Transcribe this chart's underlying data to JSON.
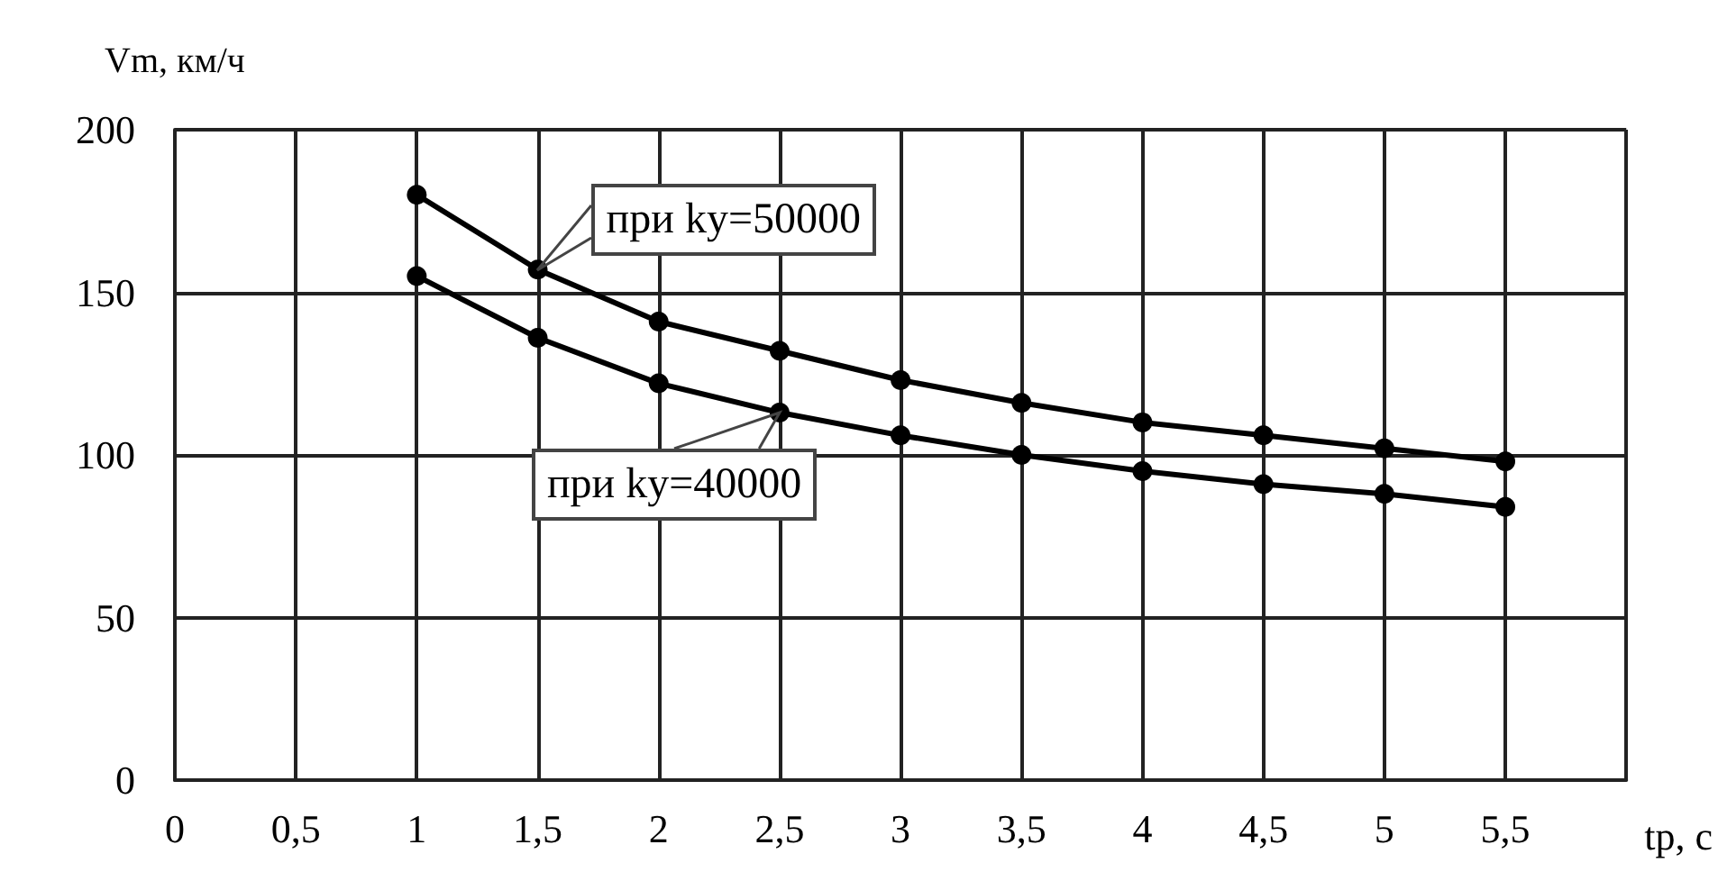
{
  "chart_data": {
    "type": "line",
    "xlabel": "tp, с",
    "ylabel": "Vm, км/ч",
    "x": [
      1,
      1.5,
      2,
      2.5,
      3,
      3.5,
      4,
      4.5,
      5,
      5.5
    ],
    "series": [
      {
        "color": "#000000",
        "values": [
          180,
          157,
          141,
          132,
          123,
          116,
          110,
          106,
          102,
          98
        ]
      },
      {
        "color": "#000000",
        "values": [
          155,
          136,
          122,
          113,
          106,
          100,
          95,
          91,
          88,
          84
        ]
      }
    ],
    "xlim": [
      0,
      6
    ],
    "xticks": [
      0,
      {
        "value": 0.5,
        "label": "0,5"
      },
      1,
      {
        "value": 1.5,
        "label": "1,5"
      },
      2,
      {
        "value": 2.5,
        "label": "2,5"
      },
      3,
      {
        "value": 3.5,
        "label": "3,5"
      },
      4,
      {
        "value": 4.5,
        "label": "4,5"
      },
      5,
      {
        "value": 5.5,
        "label": "5,5"
      },
      {
        "value": 6,
        "label": null
      }
    ],
    "ylim": [
      0,
      200
    ],
    "yticks": [
      0,
      50,
      100,
      150,
      200
    ],
    "annotations": [
      {
        "text": "при ky=50000",
        "x": 1.5,
        "y": 157
      },
      {
        "text": "при ky=40000",
        "x": 2.5,
        "y": 113
      }
    ],
    "grid": true,
    "marker": "circle",
    "line_style": "solid"
  }
}
